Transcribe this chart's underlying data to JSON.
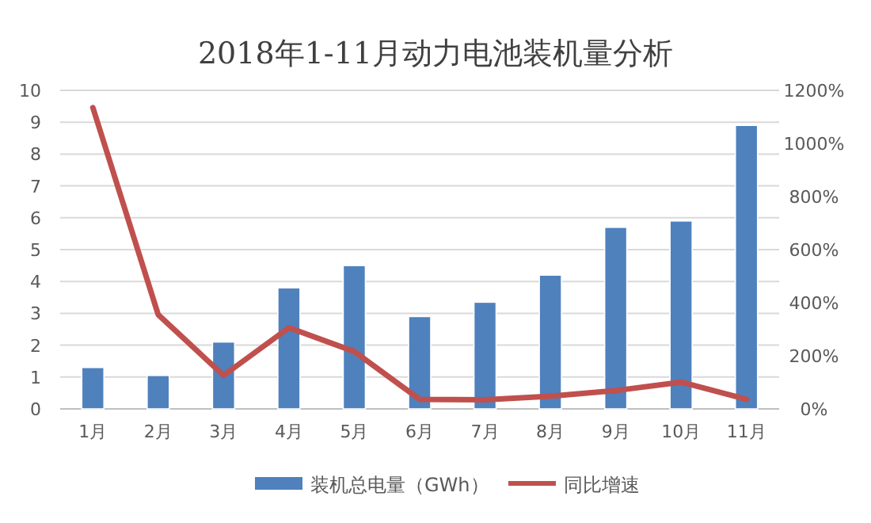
{
  "chart_data": {
    "type": "bar",
    "title": "2018年1-11月动力电池装机量分析",
    "categories": [
      "1月",
      "2月",
      "3月",
      "4月",
      "5月",
      "6月",
      "7月",
      "8月",
      "9月",
      "10月",
      "11月"
    ],
    "series": [
      {
        "name": "装机总电量（GWh）",
        "color": "#4f81bd",
        "values": [
          1.3,
          1.05,
          2.1,
          3.8,
          4.5,
          2.9,
          3.35,
          4.2,
          5.7,
          5.9,
          8.9
        ]
      },
      {
        "name": "同比增速",
        "type": "line",
        "axis": "y2",
        "color": "#c0504d",
        "values": [
          1135,
          355,
          126,
          306,
          216,
          36,
          34,
          48,
          69,
          101,
          36
        ]
      }
    ],
    "ylim": [
      0,
      10
    ],
    "yticks": [
      0,
      1,
      2,
      3,
      4,
      5,
      6,
      7,
      8,
      9,
      10
    ],
    "y2lim": [
      0,
      1200
    ],
    "y2ticks": [
      {
        "value": 0,
        "label": "0%"
      },
      {
        "value": 200,
        "label": "200%"
      },
      {
        "value": 400,
        "label": "400%"
      },
      {
        "value": 600,
        "label": "600%"
      },
      {
        "value": 800,
        "label": "800%"
      },
      {
        "value": 1000,
        "label": "1000%"
      },
      {
        "value": 1200,
        "label": "1200%"
      }
    ],
    "grid": "y",
    "legend": "bottom"
  }
}
